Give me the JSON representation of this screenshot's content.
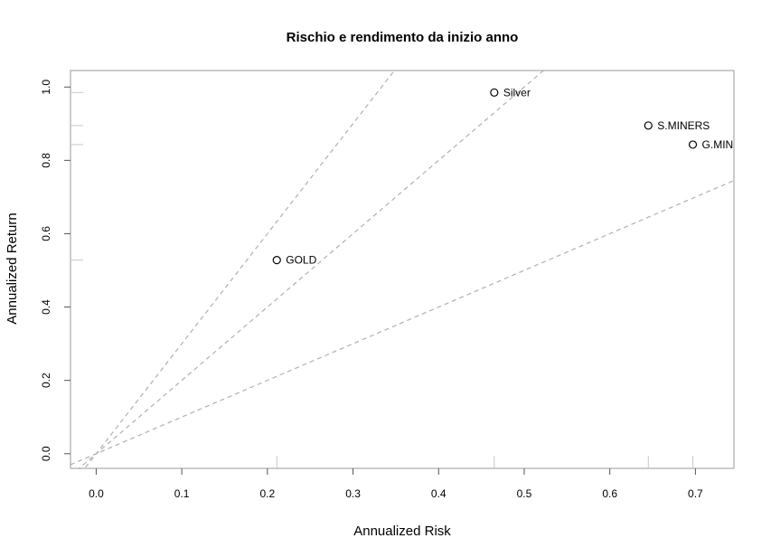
{
  "chart_data": {
    "type": "scatter",
    "title": "Rischio e rendimento da inizio anno",
    "xlabel": "Annualized Risk",
    "ylabel": "Annualized Return",
    "xlim": [
      -0.03,
      0.745
    ],
    "ylim": [
      -0.04,
      1.045
    ],
    "xticks": [
      "0.0",
      "0.1",
      "0.2",
      "0.3",
      "0.4",
      "0.5",
      "0.6",
      "0.7"
    ],
    "yticks": [
      "0.0",
      "0.2",
      "0.4",
      "0.6",
      "0.8",
      "1.0"
    ],
    "grid": false,
    "points": [
      {
        "label": "GOLD",
        "x": 0.211,
        "y": 0.528
      },
      {
        "label": "Silver",
        "x": 0.465,
        "y": 0.985
      },
      {
        "label": "S.MINERS",
        "x": 0.645,
        "y": 0.895
      },
      {
        "label": "G.MIN",
        "x": 0.697,
        "y": 0.843
      }
    ],
    "reference_lines": [
      {
        "slope": 3.0,
        "intercept": 0
      },
      {
        "slope": 2.0,
        "intercept": 0
      },
      {
        "slope": 1.0,
        "intercept": 0
      }
    ],
    "axis_rug": {
      "x": [
        0.211,
        0.465,
        0.645,
        0.697
      ],
      "y": [
        0.528,
        0.843,
        0.895,
        0.985
      ]
    }
  }
}
